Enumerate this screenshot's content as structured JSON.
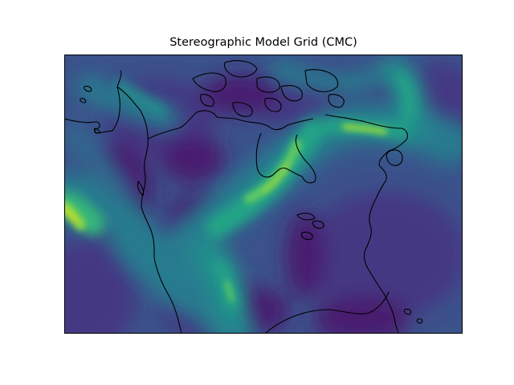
{
  "title": "Stereographic Model Grid (CMC)",
  "colors": {
    "background": "#ffffff",
    "coastline": "#000000",
    "frame": "#000000",
    "palette": [
      "#440154",
      "#481f70",
      "#443983",
      "#3b528b",
      "#31688e",
      "#287c8e",
      "#21918c",
      "#20a486",
      "#35b779",
      "#5ec962",
      "#90d743",
      "#c8e020"
    ]
  }
}
